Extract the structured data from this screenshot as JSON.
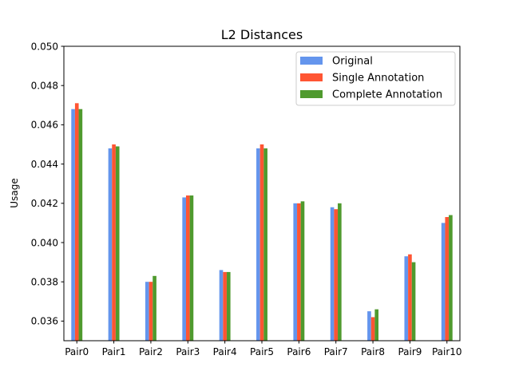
{
  "chart_data": {
    "type": "bar",
    "title": "L2 Distances",
    "xlabel": "",
    "ylabel": "Usage",
    "ylim": [
      0.035,
      0.05
    ],
    "yticks": [
      0.036,
      0.038,
      0.04,
      0.042,
      0.044,
      0.046,
      0.048,
      0.05
    ],
    "ytick_labels": [
      "0.036",
      "0.038",
      "0.040",
      "0.042",
      "0.044",
      "0.046",
      "0.048",
      "0.050"
    ],
    "categories": [
      "Pair0",
      "Pair1",
      "Pair2",
      "Pair3",
      "Pair4",
      "Pair5",
      "Pair6",
      "Pair7",
      "Pair8",
      "Pair9",
      "Pair10"
    ],
    "series": [
      {
        "name": "Original",
        "color": "#6495ED",
        "values": [
          0.0468,
          0.0448,
          0.038,
          0.0423,
          0.0386,
          0.0448,
          0.042,
          0.0418,
          0.0365,
          0.0393,
          0.041
        ]
      },
      {
        "name": "Single Annotation",
        "color": "#FF5533",
        "values": [
          0.0471,
          0.045,
          0.038,
          0.0424,
          0.0385,
          0.045,
          0.042,
          0.0417,
          0.0362,
          0.0394,
          0.0413
        ]
      },
      {
        "name": "Complete Annotation",
        "color": "#4F9A2E",
        "values": [
          0.0468,
          0.0449,
          0.0383,
          0.0424,
          0.0385,
          0.0448,
          0.0421,
          0.042,
          0.0366,
          0.039,
          0.0414
        ]
      }
    ],
    "legend_position": "upper-right",
    "grid": false
  }
}
